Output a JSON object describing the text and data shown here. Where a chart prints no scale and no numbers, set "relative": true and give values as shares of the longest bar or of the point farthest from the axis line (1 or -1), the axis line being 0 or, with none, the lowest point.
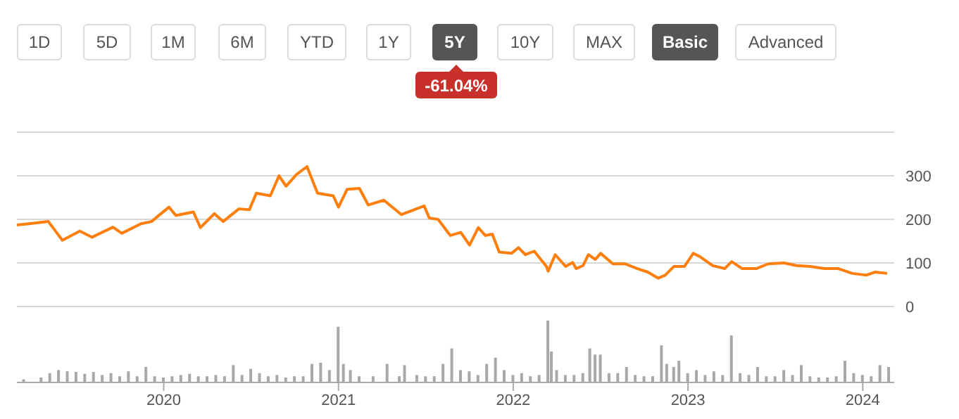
{
  "chart_data": [
    {
      "type": "line",
      "annotations": [
        "1D",
        "5D",
        "1M",
        "6M",
        "YTD",
        "1Y",
        "5Y",
        "10Y",
        "MAX",
        "Basic",
        "Advanced",
        "-61.04%"
      ],
      "x": [
        2019.16,
        2019.23,
        2019.34,
        2019.42,
        2019.52,
        2019.59,
        2019.71,
        2019.76,
        2019.87,
        2019.93,
        2020.03,
        2020.07,
        2020.17,
        2020.21,
        2020.29,
        2020.34,
        2020.43,
        2020.49,
        2020.53,
        2020.61,
        2020.66,
        2020.7,
        2020.76,
        2020.82,
        2020.88,
        2020.97,
        2021.0,
        2021.05,
        2021.12,
        2021.17,
        2021.26,
        2021.36,
        2021.42,
        2021.49,
        2021.52,
        2021.57,
        2021.64,
        2021.7,
        2021.75,
        2021.8,
        2021.84,
        2021.88,
        2021.92,
        2021.99,
        2022.03,
        2022.07,
        2022.12,
        2022.19,
        2022.2,
        2022.24,
        2022.3,
        2022.34,
        2022.36,
        2022.4,
        2022.43,
        2022.47,
        2022.5,
        2022.57,
        2022.64,
        2022.71,
        2022.77,
        2022.83,
        2022.87,
        2022.92,
        2022.98,
        2023.03,
        2023.07,
        2023.14,
        2023.21,
        2023.25,
        2023.31,
        2023.39,
        2023.46,
        2023.55,
        2023.62,
        2023.7,
        2023.78,
        2023.86,
        2023.94,
        2024.02,
        2024.07,
        2024.14
      ],
      "series": [
        {
          "color": "#ff7f0e",
          "values": [
            187,
            190,
            195,
            152,
            173,
            159,
            182,
            168,
            190,
            195,
            228,
            209,
            217,
            181,
            213,
            195,
            224,
            222,
            260,
            254,
            300,
            276,
            303,
            321,
            260,
            254,
            228,
            269,
            271,
            233,
            244,
            211,
            220,
            231,
            203,
            200,
            163,
            170,
            141,
            181,
            163,
            166,
            125,
            122,
            135,
            119,
            127,
            92,
            81,
            119,
            92,
            101,
            87,
            94,
            119,
            108,
            122,
            98,
            98,
            87,
            79,
            65,
            72,
            92,
            92,
            122,
            114,
            94,
            87,
            103,
            87,
            87,
            98,
            100,
            94,
            92,
            87,
            87,
            76,
            72,
            79,
            76
          ]
        }
      ],
      "xlim": [
        2019.16,
        2024.18
      ],
      "ylim": [
        0,
        400
      ],
      "yticks": [
        0,
        100,
        200,
        300,
        {
          "value": 400,
          "label": null
        }
      ],
      "grid": "y",
      "tick_labels": "y"
    },
    {
      "type": "bar",
      "relative": true,
      "tick_labels": "x",
      "color": "#a8a8a8",
      "xlim": [
        2019.16,
        2024.18
      ],
      "xticks": [
        2020,
        2021,
        2022,
        2023,
        2024
      ],
      "x": [
        2019.2,
        2019.3,
        2019.35,
        2019.4,
        2019.45,
        2019.5,
        2019.55,
        2019.6,
        2019.65,
        2019.7,
        2019.75,
        2019.8,
        2019.85,
        2019.9,
        2019.95,
        2020.0,
        2020.05,
        2020.1,
        2020.15,
        2020.2,
        2020.25,
        2020.3,
        2020.35,
        2020.4,
        2020.45,
        2020.5,
        2020.55,
        2020.6,
        2020.65,
        2020.7,
        2020.75,
        2020.8,
        2020.85,
        2020.9,
        2020.95,
        2021.0,
        2021.03,
        2021.07,
        2021.12,
        2021.2,
        2021.28,
        2021.35,
        2021.38,
        2021.45,
        2021.5,
        2021.55,
        2021.6,
        2021.65,
        2021.7,
        2021.75,
        2021.8,
        2021.85,
        2021.9,
        2021.95,
        2022.0,
        2022.05,
        2022.1,
        2022.15,
        2022.2,
        2022.22,
        2022.25,
        2022.3,
        2022.35,
        2022.4,
        2022.44,
        2022.47,
        2022.5,
        2022.55,
        2022.6,
        2022.65,
        2022.7,
        2022.75,
        2022.8,
        2022.85,
        2022.88,
        2022.92,
        2022.95,
        2023.0,
        2023.05,
        2023.1,
        2023.15,
        2023.2,
        2023.25,
        2023.3,
        2023.35,
        2023.4,
        2023.45,
        2023.5,
        2023.55,
        2023.6,
        2023.65,
        2023.7,
        2023.75,
        2023.8,
        2023.85,
        2023.9,
        2023.95,
        2024.0,
        2024.05,
        2024.1,
        2024.15
      ],
      "values": [
        0.05,
        0.08,
        0.15,
        0.2,
        0.18,
        0.17,
        0.14,
        0.17,
        0.12,
        0.15,
        0.1,
        0.18,
        0.1,
        0.25,
        0.1,
        0.08,
        0.1,
        0.12,
        0.14,
        0.1,
        0.1,
        0.12,
        0.1,
        0.28,
        0.12,
        0.22,
        0.15,
        0.1,
        0.12,
        0.08,
        0.1,
        0.1,
        0.3,
        0.32,
        0.2,
        0.9,
        0.3,
        0.2,
        0.1,
        0.1,
        0.3,
        0.1,
        0.28,
        0.12,
        0.1,
        0.1,
        0.3,
        0.55,
        0.2,
        0.18,
        0.12,
        0.3,
        0.4,
        0.2,
        0.12,
        0.15,
        0.1,
        0.12,
        1.0,
        0.5,
        0.2,
        0.12,
        0.12,
        0.15,
        0.55,
        0.45,
        0.45,
        0.15,
        0.15,
        0.25,
        0.12,
        0.1,
        0.1,
        0.6,
        0.3,
        0.25,
        0.35,
        0.15,
        0.2,
        0.12,
        0.18,
        0.12,
        0.76,
        0.15,
        0.12,
        0.25,
        0.1,
        0.1,
        0.2,
        0.12,
        0.28,
        0.1,
        0.08,
        0.08,
        0.1,
        0.35,
        0.15,
        0.12,
        0.1,
        0.28,
        0.25
      ]
    }
  ]
}
